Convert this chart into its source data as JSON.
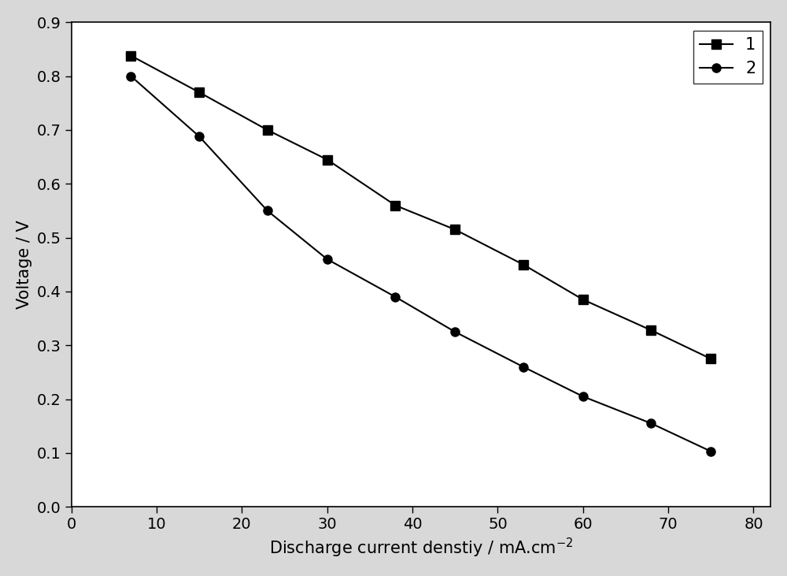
{
  "series1_x": [
    7,
    15,
    23,
    30,
    38,
    45,
    53,
    60,
    68,
    75
  ],
  "series1_y": [
    0.838,
    0.77,
    0.7,
    0.645,
    0.56,
    0.515,
    0.45,
    0.385,
    0.328,
    0.275
  ],
  "series2_x": [
    7,
    15,
    23,
    30,
    38,
    45,
    53,
    60,
    68,
    75
  ],
  "series2_y": [
    0.8,
    0.688,
    0.55,
    0.46,
    0.39,
    0.325,
    0.26,
    0.205,
    0.155,
    0.103
  ],
  "xlabel": "Discharge current denstiy / mA.cm",
  "xlabel_super": "-2",
  "ylabel": "Voltage / V",
  "xlim": [
    0,
    82
  ],
  "ylim": [
    0.0,
    0.9
  ],
  "xticks": [
    0,
    10,
    20,
    30,
    40,
    50,
    60,
    70,
    80
  ],
  "yticks": [
    0.0,
    0.1,
    0.2,
    0.3,
    0.4,
    0.5,
    0.6,
    0.7,
    0.8,
    0.9
  ],
  "line_color": "#000000",
  "marker1": "s",
  "marker2": "o",
  "markersize": 8,
  "linewidth": 1.5,
  "legend_labels": [
    "1",
    "2"
  ],
  "legend_loc": "upper right",
  "plot_bg_color": "#ffffff",
  "fig_bg_color": "#d8d8d8",
  "fig_width": 10.0,
  "fig_height": 7.31,
  "tick_labelsize": 14,
  "label_fontsize": 15,
  "legend_fontsize": 15
}
